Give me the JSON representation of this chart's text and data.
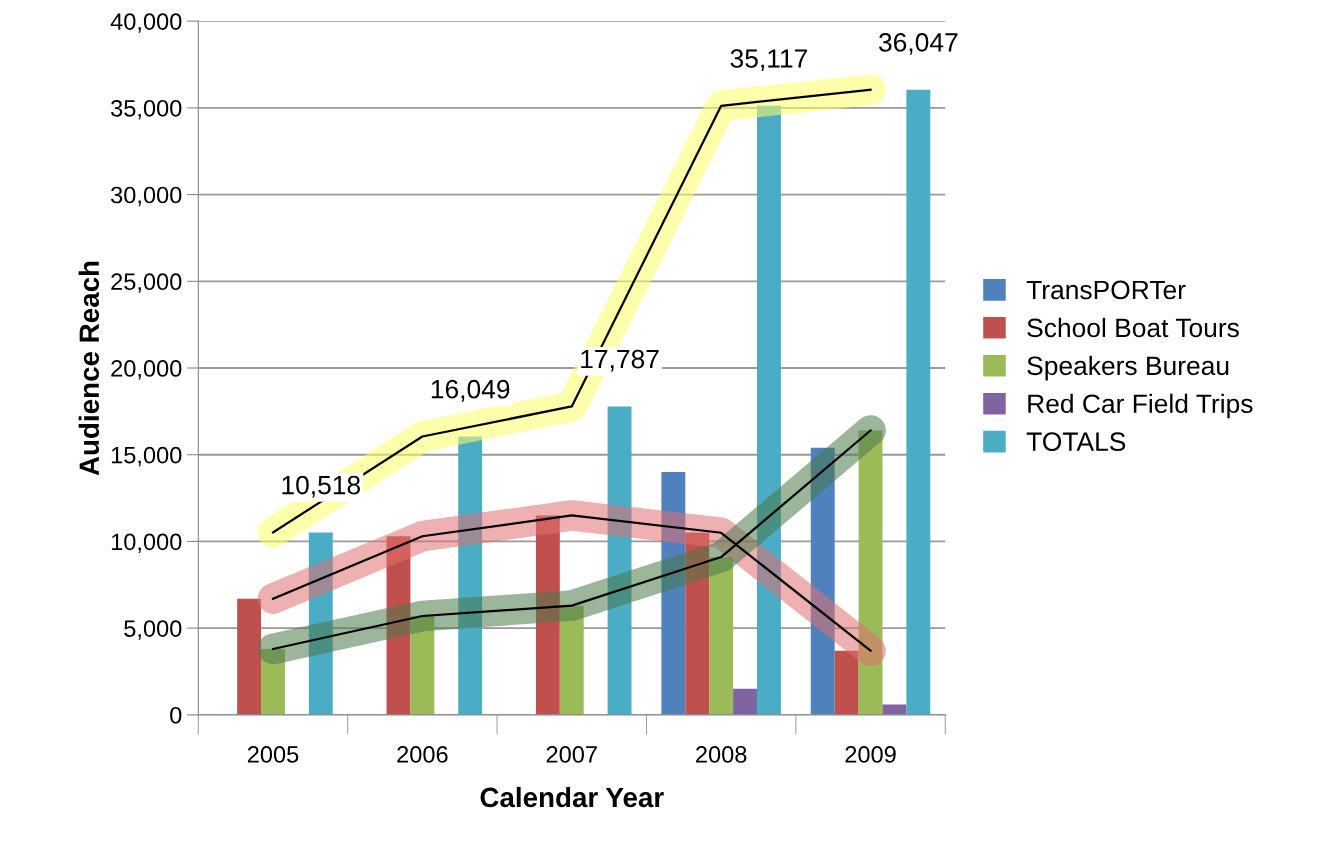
{
  "chart_data": {
    "type": "bar",
    "xlabel": "Calendar Year",
    "ylabel": "Audience Reach",
    "categories": [
      "2005",
      "2006",
      "2007",
      "2008",
      "2009"
    ],
    "series": [
      {
        "name": "TransPORTer",
        "color": "#4f81bd",
        "values": [
          null,
          null,
          null,
          14000,
          15400
        ]
      },
      {
        "name": "School Boat Tours",
        "color": "#c0504d",
        "values": [
          6700,
          10300,
          11500,
          10500,
          3700
        ]
      },
      {
        "name": "Speakers Bureau",
        "color": "#9bbb59",
        "values": [
          3800,
          5700,
          6300,
          9100,
          16400
        ]
      },
      {
        "name": "Red Car Field Trips",
        "color": "#8064a2",
        "values": [
          null,
          null,
          null,
          1500,
          600
        ]
      },
      {
        "name": "TOTALS",
        "color": "#4bacc6",
        "values": [
          10518,
          16049,
          17787,
          35117,
          36047
        ],
        "value_labels": [
          "10,518",
          "16,049",
          "17,787",
          "35,117",
          "36,047"
        ]
      },
      {
        "type": "line",
        "color": "#ffff66",
        "values": [
          10518,
          16049,
          17787,
          35117,
          36047
        ]
      },
      {
        "type": "line",
        "color": "#e07070",
        "values": [
          6700,
          10300,
          11500,
          10500,
          3700
        ]
      },
      {
        "type": "line",
        "color": "#4a7a4a",
        "values": [
          3800,
          5700,
          6300,
          9100,
          16400
        ]
      }
    ],
    "ylim": [
      0,
      40000
    ],
    "yticks": [
      {
        "value": 0,
        "label": "0"
      },
      {
        "value": 5000,
        "label": "5,000"
      },
      {
        "value": 10000,
        "label": "10,000"
      },
      {
        "value": 15000,
        "label": "15,000"
      },
      {
        "value": 20000,
        "label": "20,000"
      },
      {
        "value": 25000,
        "label": "25,000"
      },
      {
        "value": 30000,
        "label": "30,000"
      },
      {
        "value": 35000,
        "label": "35,000"
      },
      {
        "value": 40000,
        "label": "40,000"
      }
    ],
    "grid": "y",
    "legend": "right"
  }
}
